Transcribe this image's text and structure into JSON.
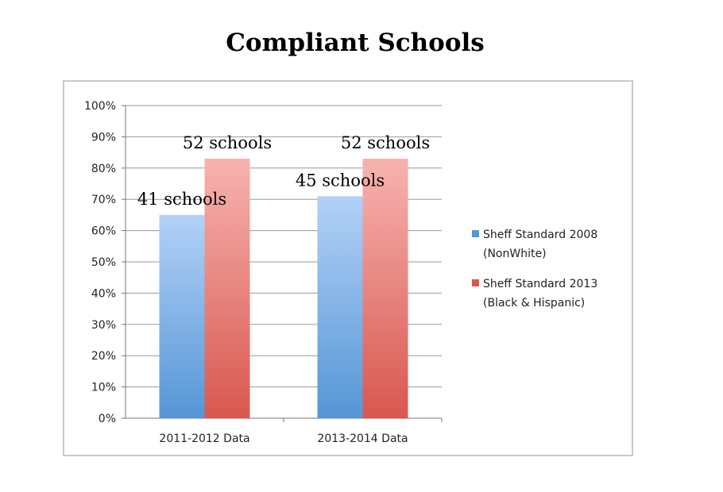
{
  "chart_data": {
    "type": "bar",
    "title": "Compliant Schools",
    "categories": [
      "2011-2012 Data",
      "2013-2014 Data"
    ],
    "y_ticks": [
      "0%",
      "10%",
      "20%",
      "30%",
      "40%",
      "50%",
      "60%",
      "70%",
      "80%",
      "90%",
      "100%"
    ],
    "ylim": [
      0,
      100
    ],
    "grid": true,
    "legend_position": "right",
    "series": [
      {
        "name": "Sheff Standard 2008 (NonWhite)",
        "legend_lines": [
          "Sheff Standard 2008",
          "(NonWhite)"
        ],
        "values": [
          65,
          71
        ],
        "labels": [
          "41 schools",
          "45 schools"
        ],
        "color_top": "#b3d1f7",
        "color_bottom": "#5596d6"
      },
      {
        "name": "Sheff Standard 2013 (Black & Hispanic)",
        "legend_lines": [
          "Sheff Standard 2013",
          "(Black & Hispanic)"
        ],
        "values": [
          83,
          83
        ],
        "labels": [
          "52 schools",
          "52 schools"
        ],
        "color_top": "#f7b3b0",
        "color_bottom": "#d9574f"
      }
    ]
  }
}
